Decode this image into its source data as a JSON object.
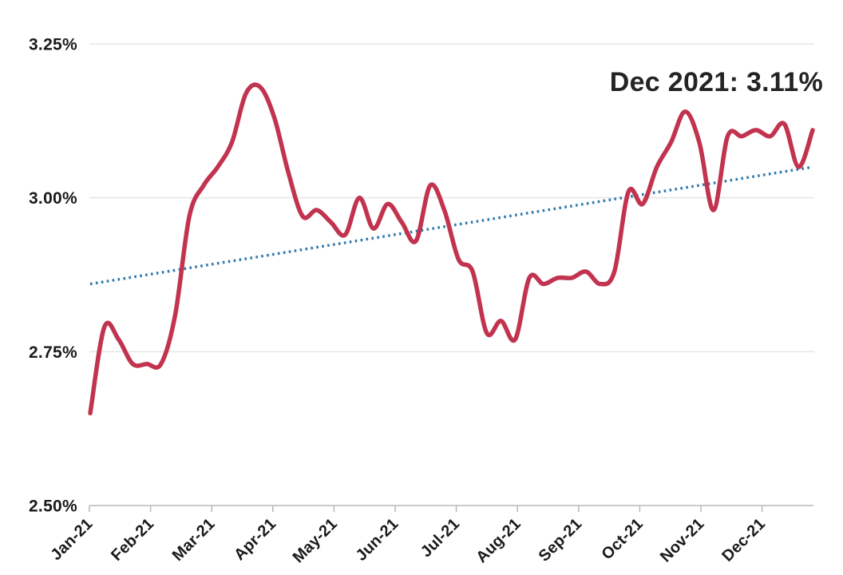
{
  "chart_data": {
    "type": "line",
    "title": "",
    "annotation": {
      "text": "Dec 2021: 3.11%"
    },
    "y_axis": {
      "min": 2.5,
      "max": 3.25,
      "format": "percent",
      "ticks": [
        {
          "label": "3.25%",
          "value": 3.25
        },
        {
          "label": "3.00%",
          "value": 3.0
        },
        {
          "label": "2.75%",
          "value": 2.75
        },
        {
          "label": "2.50%",
          "value": 2.5
        }
      ]
    },
    "x_axis": {
      "tick_labels": [
        "Jan-21",
        "Feb-21",
        "Mar-21",
        "Apr-21",
        "May-21",
        "Jun-21",
        "Jul-21",
        "Aug-21",
        "Sep-21",
        "Oct-21",
        "Nov-21",
        "Dec-21"
      ],
      "cadence": "weekly",
      "rotation_degrees": -45
    },
    "series": [
      {
        "color": "#c1334f",
        "values": [
          2.65,
          2.79,
          2.77,
          2.73,
          2.73,
          2.73,
          2.81,
          2.97,
          3.02,
          3.05,
          3.09,
          3.17,
          3.18,
          3.13,
          3.04,
          2.97,
          2.98,
          2.96,
          2.94,
          3.0,
          2.95,
          2.99,
          2.96,
          2.93,
          3.02,
          2.98,
          2.9,
          2.88,
          2.78,
          2.8,
          2.77,
          2.87,
          2.86,
          2.87,
          2.87,
          2.88,
          2.86,
          2.88,
          3.01,
          2.99,
          3.05,
          3.09,
          3.14,
          3.09,
          2.98,
          3.1,
          3.1,
          3.11,
          3.1,
          3.12,
          3.05,
          3.11
        ],
        "last_point_label": "3.11%"
      }
    ],
    "trendline": {
      "type": "linear",
      "style": "dotted",
      "start_value": 2.86,
      "end_value": 3.05,
      "color": "#2e78ae"
    },
    "ylim": [
      2.5,
      3.25
    ],
    "grid": "horizontal",
    "legend": "none",
    "colors": {
      "series": "#c1334f",
      "trend": "#2e78ae",
      "grid": "#e5e5e5",
      "axis": "#b9b9b9",
      "label": "#1a1a1a",
      "annotation": "#242424",
      "background": "#ffffff"
    }
  }
}
